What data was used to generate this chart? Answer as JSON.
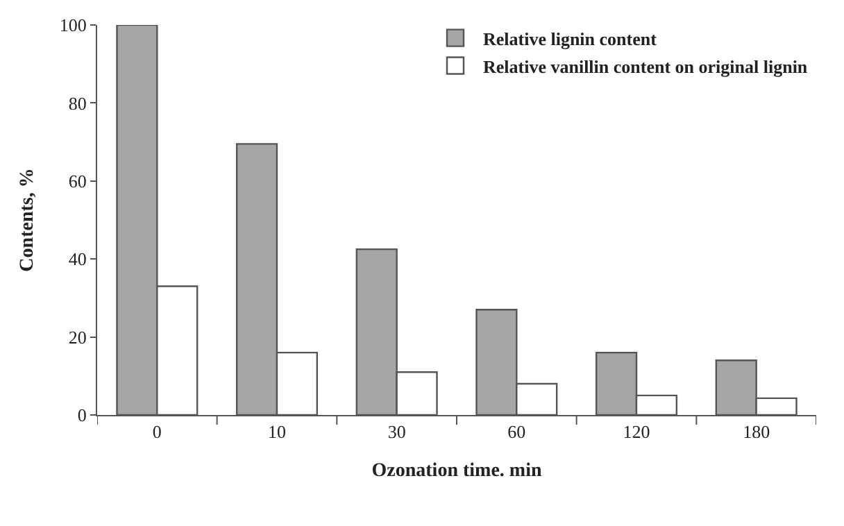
{
  "chart_data": {
    "type": "bar",
    "xlabel": "Ozonation time. min",
    "ylabel": "Contents, %",
    "categories": [
      "0",
      "10",
      "30",
      "60",
      "120",
      "180"
    ],
    "series": [
      {
        "name": "Relative lignin content",
        "color": "#a6a6a6",
        "values": [
          100,
          69.5,
          42.5,
          27,
          16,
          14
        ]
      },
      {
        "name": "Relative vanillin content on original lignin",
        "color": "#ffffff",
        "values": [
          33,
          16,
          11,
          8,
          5,
          4.3
        ]
      }
    ],
    "ylim": [
      0,
      100
    ],
    "yticks": [
      0,
      20,
      40,
      60,
      80,
      100
    ],
    "legend": "top right"
  }
}
